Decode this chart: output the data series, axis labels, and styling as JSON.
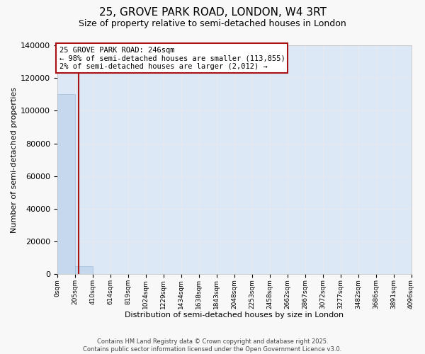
{
  "title": "25, GROVE PARK ROAD, LONDON, W4 3RT",
  "subtitle": "Size of property relative to semi-detached houses in London",
  "xlabel": "Distribution of semi-detached houses by size in London",
  "ylabel": "Number of semi-detached properties",
  "annotation_title": "25 GROVE PARK ROAD: 246sqm",
  "annotation_line1": "← 98% of semi-detached houses are smaller (113,855)",
  "annotation_line2": "2% of semi-detached houses are larger (2,012) →",
  "footer_line1": "Contains HM Land Registry data © Crown copyright and database right 2025.",
  "footer_line2": "Contains public sector information licensed under the Open Government Licence v3.0.",
  "property_size": 246,
  "bar_color": "#c5d8ee",
  "bar_edge_color": "#a0bcda",
  "vline_color": "#aa1111",
  "annotation_box_edgecolor": "#aa1111",
  "plot_bg_color": "#dce8f5",
  "grid_color": "#e8e8f0",
  "fig_bg_color": "#f8f8f8",
  "bin_edges": [
    0,
    205,
    410,
    614,
    819,
    1024,
    1229,
    1434,
    1638,
    1843,
    2048,
    2253,
    2458,
    2662,
    2867,
    3072,
    3277,
    3482,
    3686,
    3891,
    4096
  ],
  "bin_labels": [
    "0sqm",
    "205sqm",
    "410sqm",
    "614sqm",
    "819sqm",
    "1024sqm",
    "1229sqm",
    "1434sqm",
    "1638sqm",
    "1843sqm",
    "2048sqm",
    "2253sqm",
    "2458sqm",
    "2662sqm",
    "2867sqm",
    "3072sqm",
    "3277sqm",
    "3482sqm",
    "3686sqm",
    "3891sqm",
    "4096sqm"
  ],
  "bar_heights": [
    110000,
    4800,
    350,
    60,
    20,
    8,
    3,
    2,
    1,
    0,
    0,
    0,
    0,
    0,
    0,
    0,
    0,
    0,
    0,
    0
  ],
  "ylim": [
    0,
    140000
  ],
  "yticks": [
    0,
    20000,
    40000,
    60000,
    80000,
    100000,
    120000,
    140000
  ],
  "title_fontsize": 11,
  "subtitle_fontsize": 9,
  "ylabel_fontsize": 8,
  "xlabel_fontsize": 8,
  "ytick_fontsize": 8,
  "xtick_fontsize": 6.5,
  "annotation_fontsize": 7.5,
  "footer_fontsize": 6
}
